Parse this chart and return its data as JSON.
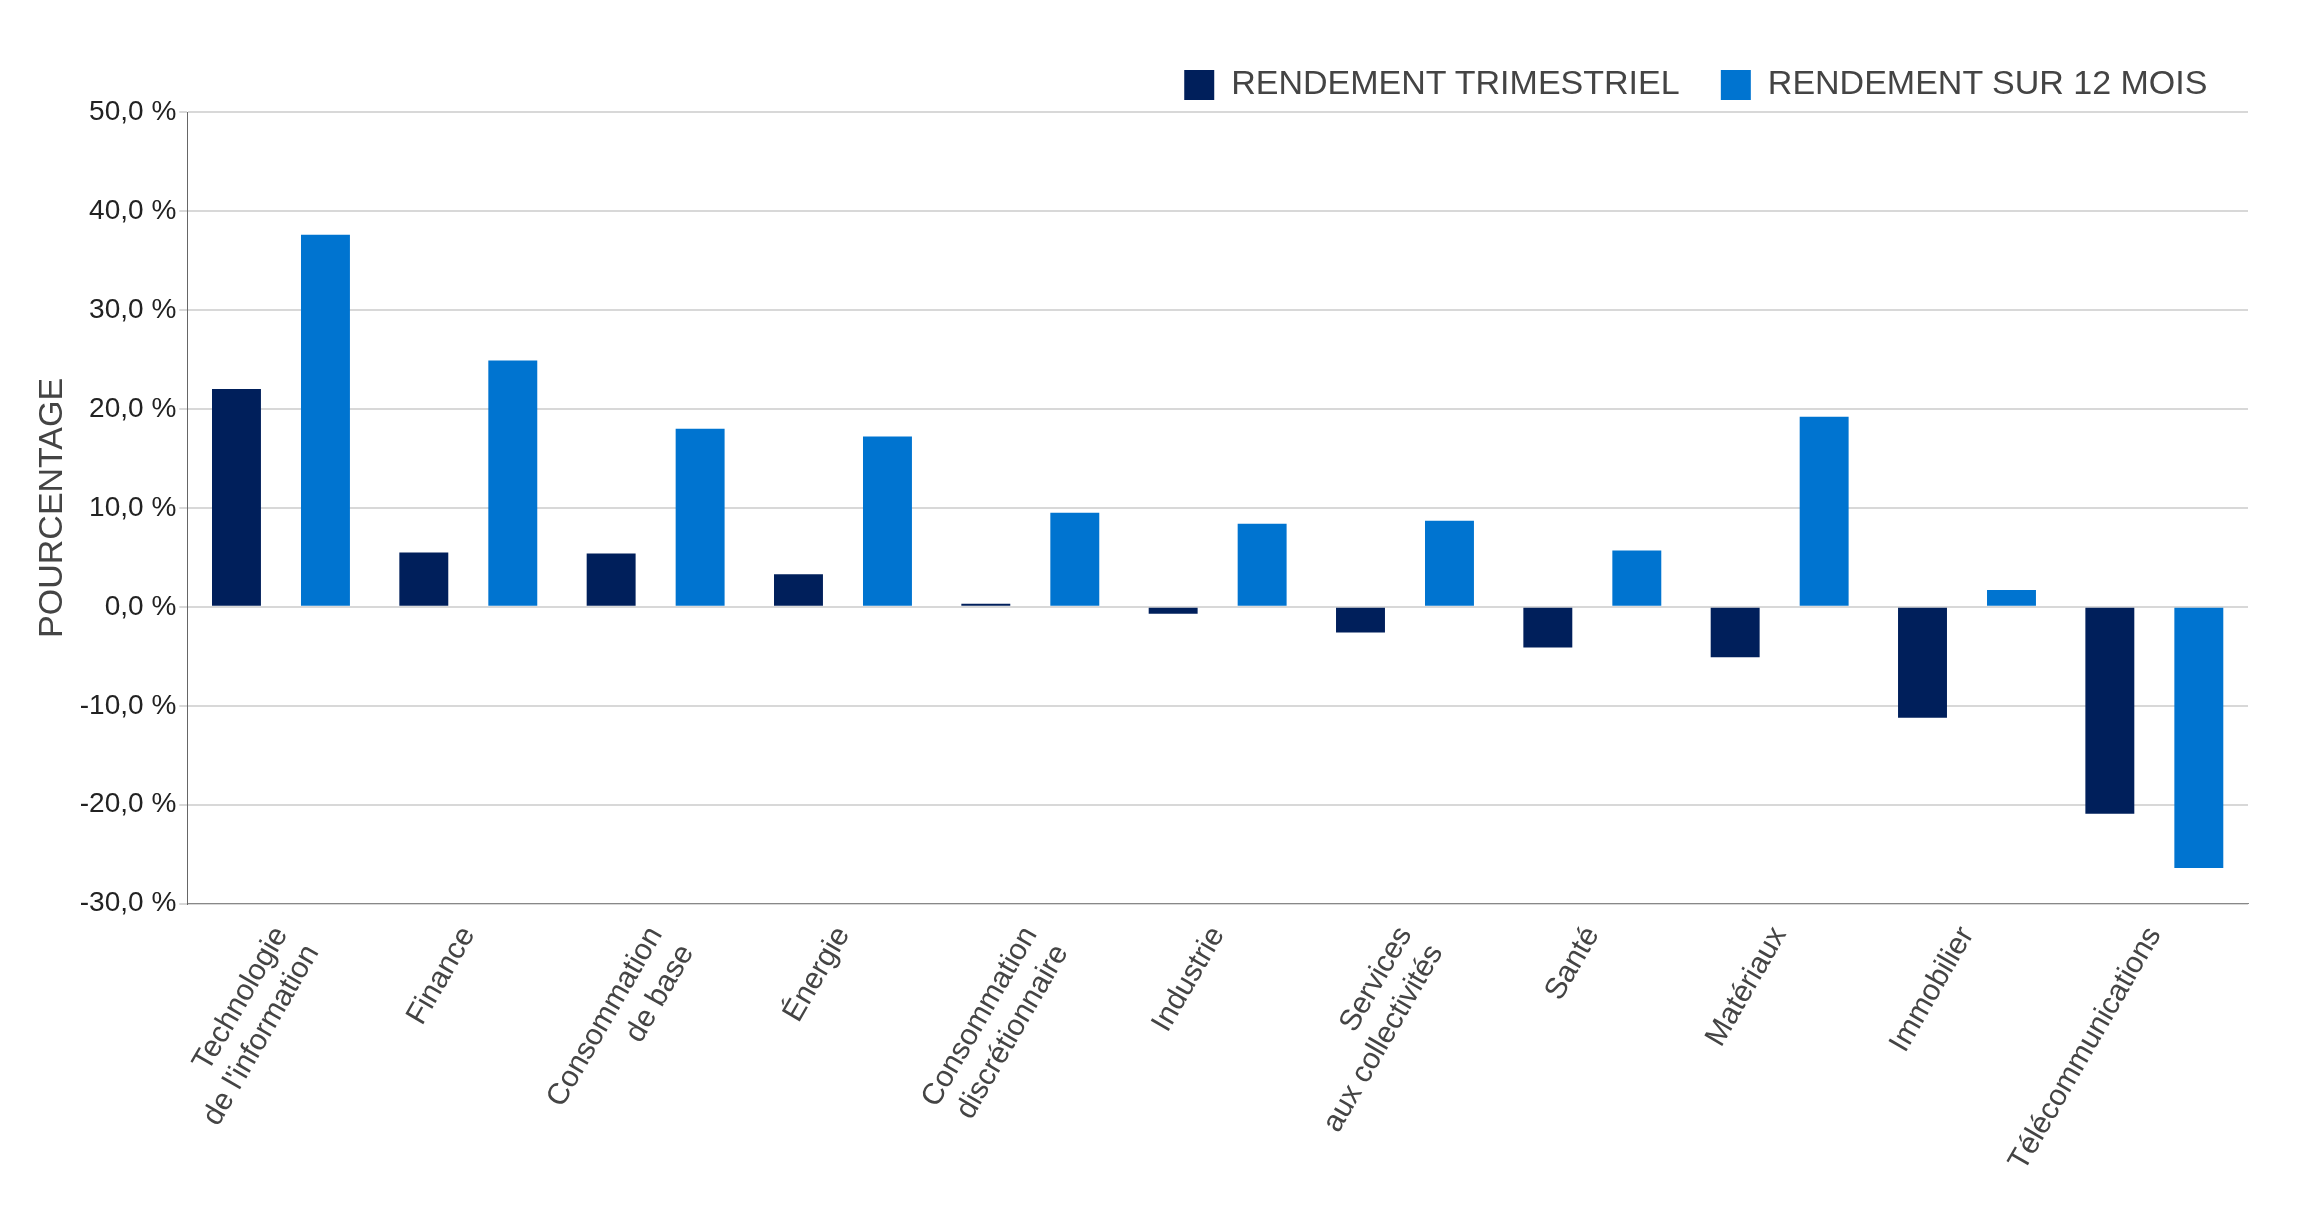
{
  "chart_data": {
    "type": "bar",
    "ylabel": "POURCENTAGE",
    "categories": [
      "Technologie de l'information",
      "Finance",
      "Consommation de base",
      "Énergie",
      "Consommation discrétionnaire",
      "Industrie",
      "Services aux collectivités",
      "Santé",
      "Matériaux",
      "Immobilier",
      "Télécommunications"
    ],
    "series": [
      {
        "name": "RENDEMENT TRIMESTRIEL",
        "color": "#001f5b",
        "values": [
          22.0,
          5.5,
          5.4,
          3.3,
          0.3,
          -0.7,
          -2.6,
          -4.1,
          -5.1,
          -11.2,
          -20.9
        ]
      },
      {
        "name": "RENDEMENT SUR 12 MOIS",
        "color": "#0074d0",
        "values": [
          37.6,
          24.9,
          18.0,
          17.2,
          9.5,
          8.4,
          8.7,
          5.7,
          19.2,
          1.7,
          -26.4
        ]
      }
    ],
    "ylim": [
      -30,
      50
    ],
    "yticks": [
      {
        "value": -30,
        "label": "-30,0 %"
      },
      {
        "value": -20,
        "label": "-20,0 %"
      },
      {
        "value": -10,
        "label": "-10,0 %"
      },
      {
        "value": 0,
        "label": "0,0 %"
      },
      {
        "value": 10,
        "label": "10,0 %"
      },
      {
        "value": 20,
        "label": "20,0 %"
      },
      {
        "value": 30,
        "label": "30,0 %"
      },
      {
        "value": 40,
        "label": "40,0 %"
      },
      {
        "value": 50,
        "label": "50,0 %"
      }
    ],
    "grid": "y",
    "legend": "top right"
  }
}
